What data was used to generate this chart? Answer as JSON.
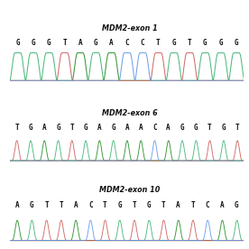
{
  "panels": [
    {
      "title": "MDM2-exon 1",
      "sequence": [
        "G",
        "G",
        "G",
        "T",
        "A",
        "G",
        "A",
        "C",
        "C",
        "T",
        "G",
        "T",
        "G",
        "G",
        "G"
      ],
      "peak_style": "broad"
    },
    {
      "title": "MDM2-exon 6",
      "sequence": [
        "T",
        "G",
        "A",
        "G",
        "T",
        "G",
        "A",
        "G",
        "A",
        "A",
        "C",
        "A",
        "G",
        "G",
        "T",
        "G",
        "T"
      ],
      "peak_style": "narrow"
    },
    {
      "title": "MDM2-exon 10",
      "sequence": [
        "A",
        "G",
        "T",
        "T",
        "A",
        "C",
        "T",
        "G",
        "T",
        "G",
        "T",
        "A",
        "T",
        "C",
        "A",
        "G"
      ],
      "peak_style": "narrow"
    }
  ],
  "colors": {
    "G": "#3cb371",
    "A": "#228B22",
    "T": "#cd5c5c",
    "C": "#6495ed"
  },
  "background": "#ffffff",
  "text_color": "#111111",
  "fig_width": 2.76,
  "fig_height": 2.76,
  "dpi": 100
}
